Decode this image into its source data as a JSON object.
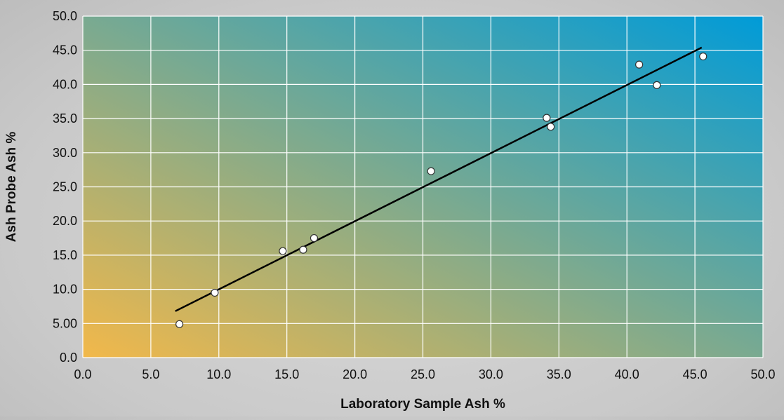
{
  "chart_data": {
    "type": "scatter",
    "title": "",
    "xlabel": "Laboratory Sample Ash %",
    "ylabel": "Ash Probe Ash %",
    "xlim": [
      0,
      50
    ],
    "ylim": [
      0,
      50
    ],
    "x_ticks": [
      "0.0",
      "5.0",
      "10.0",
      "15.0",
      "20.0",
      "25.0",
      "30.0",
      "35.0",
      "40.0",
      "45.0",
      "50.0"
    ],
    "y_ticks": [
      "0.0",
      "5.00",
      "10.0",
      "15.0",
      "20.0",
      "25.0",
      "30.0",
      "35.0",
      "40.0",
      "45.0",
      "50.0"
    ],
    "grid": true,
    "points": [
      {
        "x": 7.1,
        "y": 4.9
      },
      {
        "x": 9.7,
        "y": 9.5
      },
      {
        "x": 14.7,
        "y": 15.6
      },
      {
        "x": 16.2,
        "y": 15.8
      },
      {
        "x": 17.0,
        "y": 17.5
      },
      {
        "x": 25.6,
        "y": 27.3
      },
      {
        "x": 34.1,
        "y": 35.1
      },
      {
        "x": 34.4,
        "y": 33.8
      },
      {
        "x": 40.9,
        "y": 42.9
      },
      {
        "x": 42.2,
        "y": 39.9
      },
      {
        "x": 45.6,
        "y": 44.1
      }
    ],
    "trendline": {
      "x": [
        6.8,
        45.5
      ],
      "y": [
        6.8,
        45.4
      ]
    },
    "colors": {
      "gradient_start": "#f2b84a",
      "gradient_end": "#009bd8",
      "grid": "#ffffff",
      "trendline": "#000000",
      "marker_fill": "#ffffff",
      "marker_stroke": "#333333"
    }
  }
}
